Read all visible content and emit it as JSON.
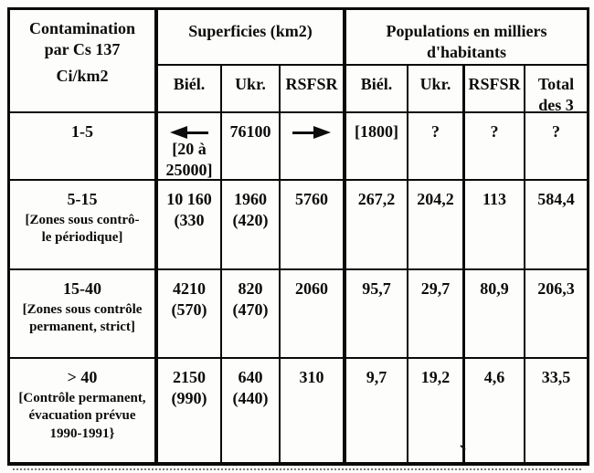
{
  "palette": {
    "ink": "#0c0c0c",
    "paper": "#fdfdfb",
    "border": "#0a0a0a"
  },
  "icons": {
    "arrow-left-icon": "◀—",
    "arrow-right-icon": "—▶"
  },
  "header": {
    "col_contamination_line1": "Contamination\npar Cs 137",
    "col_contamination_unit": "Ci/km2",
    "superficies_title": "Superficies (km2)",
    "populations_title": "Populations en milliers\nd'habitants",
    "sup_subcols": {
      "biel": "Biél.",
      "ukr": "Ukr.",
      "rsfsr": "RSFSR"
    },
    "pop_subcols": {
      "biel": "Biél.",
      "ukr": "Ukr.",
      "rsfsr": "RSFSR",
      "total": "Total\ndes 3"
    }
  },
  "rows": [
    {
      "range": "1-5",
      "zone": "",
      "sup": {
        "biel": "[20 à\n25000]",
        "ukr": "76100",
        "rsfsr": ""
      },
      "pop": {
        "biel": "[1800]",
        "ukr": "?",
        "rsfsr": "?",
        "total": "?"
      }
    },
    {
      "range": "5-15",
      "zone": "[Zones sous contrô-\nle périodique]",
      "sup": {
        "biel": "10 160\n(330",
        "ukr": "1960\n(420)",
        "rsfsr": "5760"
      },
      "pop": {
        "biel": "267,2",
        "ukr": "204,2",
        "rsfsr": "113",
        "total": "584,4"
      }
    },
    {
      "range": "15-40",
      "zone": "[Zones sous contrôle\npermanent, strict]",
      "sup": {
        "biel": "4210\n(570)",
        "ukr": "820\n(470)",
        "rsfsr": "2060"
      },
      "pop": {
        "biel": "95,7",
        "ukr": "29,7",
        "rsfsr": "80,9",
        "total": "206,3"
      }
    },
    {
      "range": "> 40",
      "zone": "[Contrôle permanent,\névacuation prévue\n1990-1991}",
      "sup": {
        "biel": "2150\n(990)",
        "ukr": "640\n(440)",
        "rsfsr": "310"
      },
      "pop": {
        "biel": "9,7",
        "ukr": "19,2",
        "rsfsr": "4,6",
        "total": "33,5"
      }
    }
  ]
}
